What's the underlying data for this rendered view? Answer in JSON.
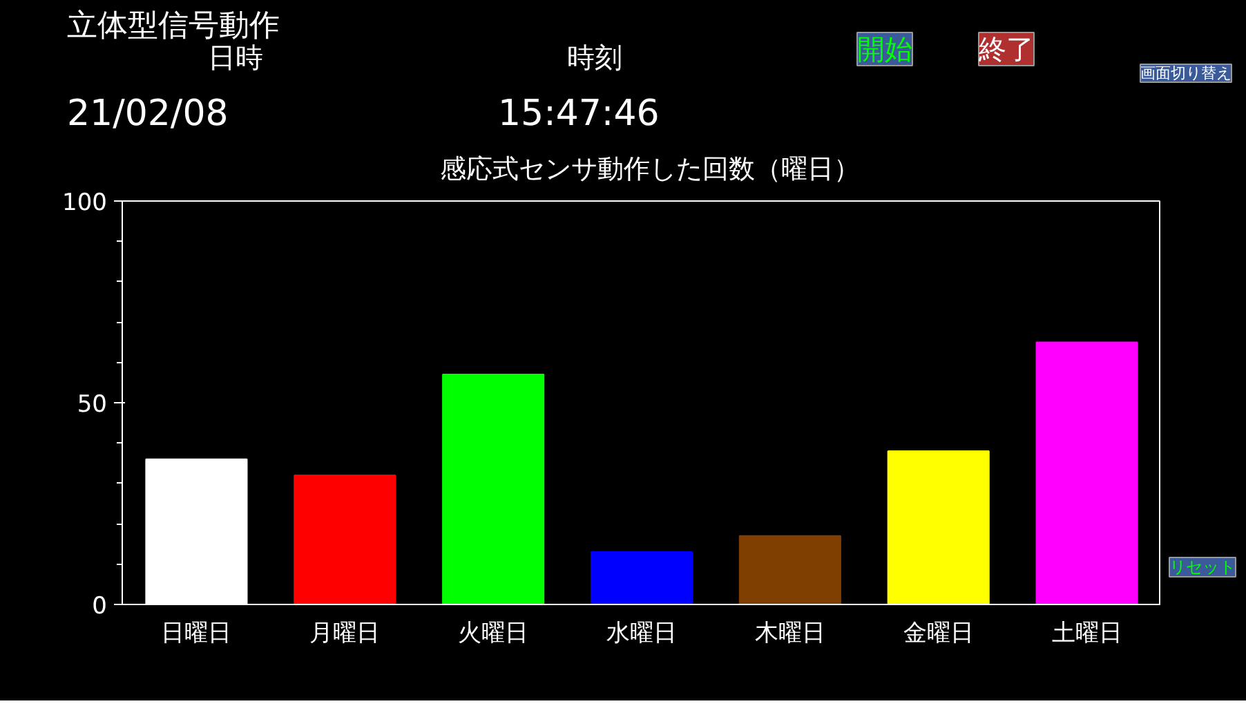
{
  "chart_data": {
    "type": "bar",
    "title": "感応式センサ動作した回数（曜日）",
    "categories": [
      "日曜日",
      "月曜日",
      "火曜日",
      "水曜日",
      "木曜日",
      "金曜日",
      "土曜日"
    ],
    "values": [
      36,
      32,
      57,
      13,
      17,
      38,
      65
    ],
    "colors": [
      "#ffffff",
      "#ff0000",
      "#00ff00",
      "#0000ff",
      "#7f3f00",
      "#ffff00",
      "#ff00ff"
    ],
    "ylim": [
      0,
      100
    ],
    "yticks": [
      0,
      50,
      100
    ],
    "grid": false,
    "annotations": [
      "立体型信号動作",
      "日時",
      "時刻",
      "21/02/08",
      "15:47:46",
      "開始",
      "終了",
      "画面切り替え",
      "リセット"
    ]
  }
}
